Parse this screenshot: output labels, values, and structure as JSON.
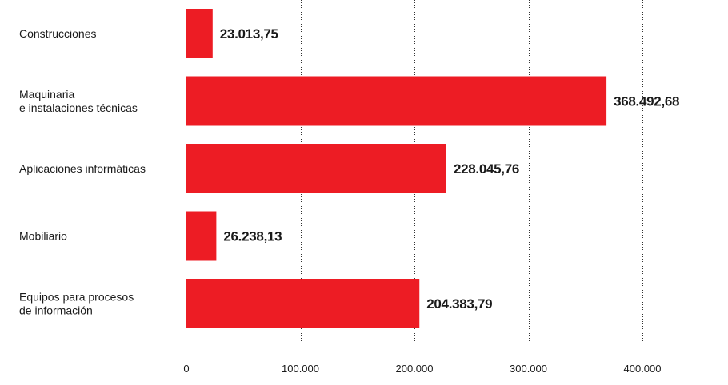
{
  "chart_data": {
    "type": "bar",
    "orientation": "horizontal",
    "categories": [
      [
        "Construcciones"
      ],
      [
        "Maquinaria",
        "e instalaciones técnicas"
      ],
      [
        "Aplicaciones informáticas"
      ],
      [
        "Mobiliario"
      ],
      [
        "Equipos para procesos",
        "de información"
      ]
    ],
    "values": [
      23013.75,
      368492.68,
      228045.76,
      26238.13,
      204383.79
    ],
    "value_labels": [
      "23.013,75",
      "368.492,68",
      "228.045,76",
      "26.238,13",
      "204.383,79"
    ],
    "xlim": [
      0,
      400000
    ],
    "ticks": [
      0,
      100000,
      200000,
      300000,
      400000
    ],
    "tick_labels": [
      "0",
      "100.000",
      "200.000",
      "300.000",
      "400.000"
    ],
    "grid": "vertical dotted",
    "bar_color": "#ed1c24",
    "title": "",
    "xlabel": "",
    "ylabel": ""
  }
}
